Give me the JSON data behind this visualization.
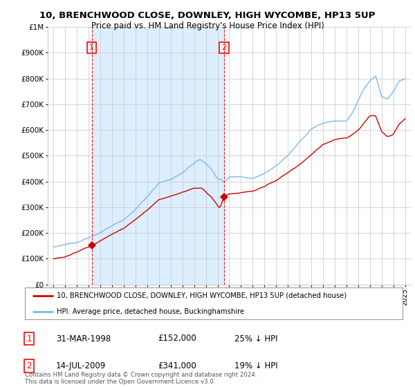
{
  "title": "10, BRENCHWOOD CLOSE, DOWNLEY, HIGH WYCOMBE, HP13 5UP",
  "subtitle": "Price paid vs. HM Land Registry's House Price Index (HPI)",
  "legend_label_red": "10, BRENCHWOOD CLOSE, DOWNLEY, HIGH WYCOMBE, HP13 5UP (detached house)",
  "legend_label_blue": "HPI: Average price, detached house, Buckinghamshire",
  "footer": "Contains HM Land Registry data © Crown copyright and database right 2024.\nThis data is licensed under the Open Government Licence v3.0.",
  "purchase1_date": "31-MAR-1998",
  "purchase1_price": "£152,000",
  "purchase1_note": "25% ↓ HPI",
  "purchase1_year": 1998.25,
  "purchase1_value": 152000,
  "purchase2_date": "14-JUL-2009",
  "purchase2_price": "£341,000",
  "purchase2_note": "19% ↓ HPI",
  "purchase2_year": 2009.54,
  "purchase2_value": 341000,
  "ylim": [
    0,
    1000000
  ],
  "yticks": [
    0,
    100000,
    200000,
    300000,
    400000,
    500000,
    600000,
    700000,
    800000,
    900000,
    1000000
  ],
  "ytick_labels": [
    "£0",
    "£100K",
    "£200K",
    "£300K",
    "£400K",
    "£500K",
    "£600K",
    "£700K",
    "£800K",
    "£900K",
    "£1M"
  ],
  "hpi_color": "#7ab8e8",
  "price_color": "#cc0000",
  "shade_color": "#ddeeff",
  "background_color": "#ffffff",
  "grid_color": "#cccccc"
}
